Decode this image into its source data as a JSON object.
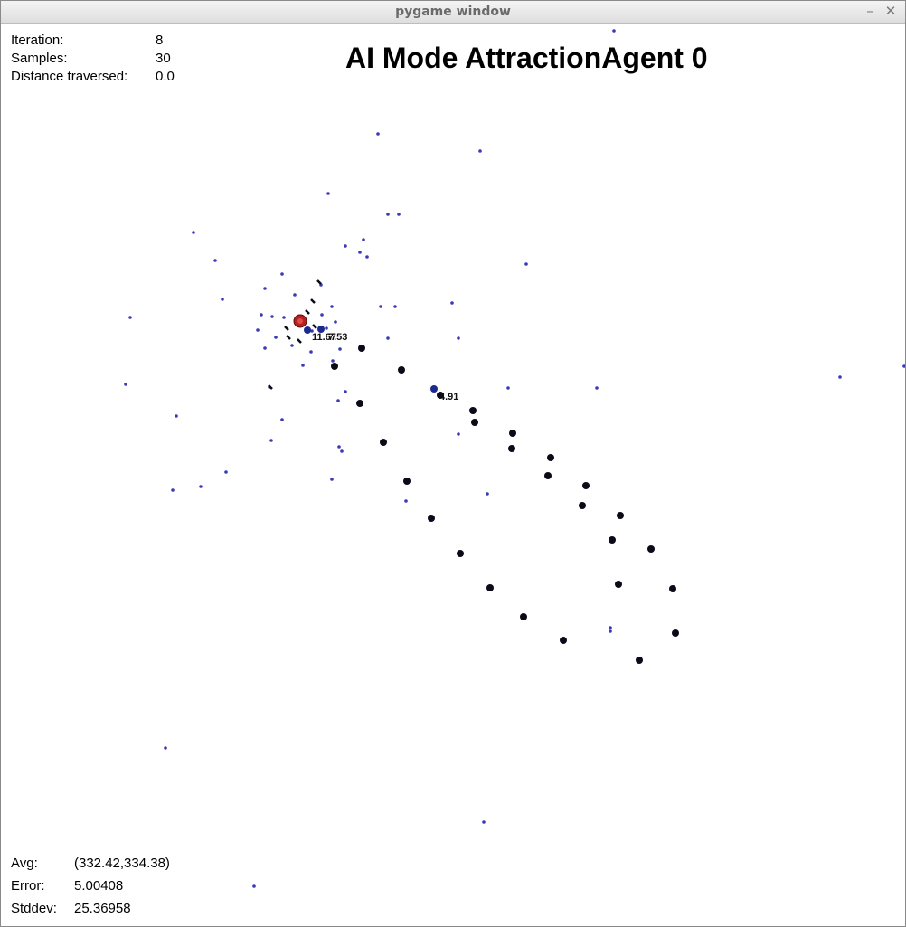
{
  "window": {
    "title": "pygame window",
    "minimize_glyph": "–",
    "close_glyph": "✕"
  },
  "stats_top": {
    "iteration_label": "Iteration:",
    "iteration_value": "8",
    "samples_label": "Samples:",
    "samples_value": "30",
    "distance_label": "Distance traversed:",
    "distance_value": "0.0"
  },
  "headline": "AI Mode AttractionAgent 0",
  "stats_bottom": {
    "avg_label": "Avg:",
    "avg_value": "(332.42,334.38)",
    "error_label": "Error:",
    "error_value": "5.00408",
    "stddev_label": "Stddev:",
    "stddev_value": "25.36958"
  },
  "scene": {
    "labels": [
      "11.67",
      "7.53",
      "4.91"
    ],
    "colors": {
      "sample": "#3a3ab8",
      "node": "#0a0a18",
      "node_highlight": "#1c2a90",
      "agent": "#b81f1f",
      "background": "#ffffff"
    }
  }
}
